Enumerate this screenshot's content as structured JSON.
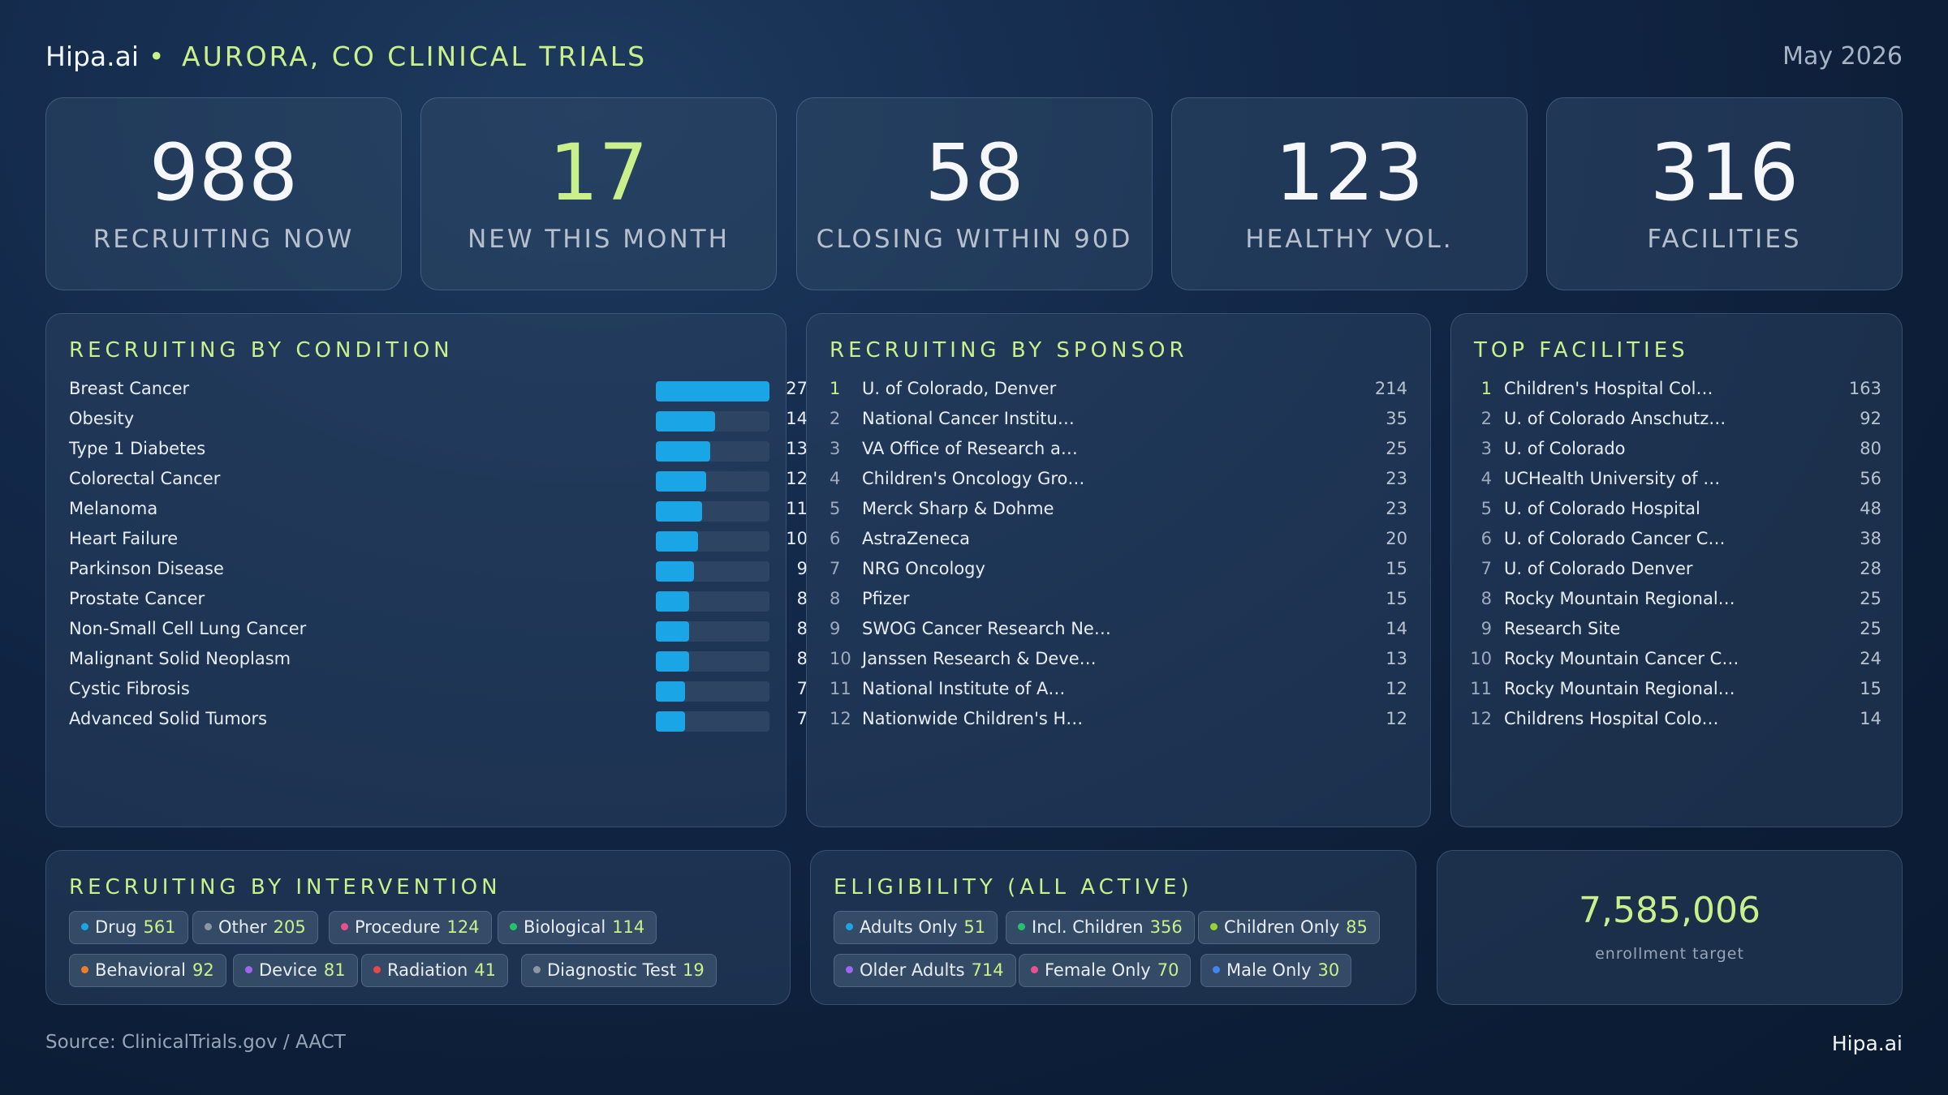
{
  "header": {
    "brand": "Hipa.ai",
    "separator": "•",
    "title": "AURORA, CO CLINICAL TRIALS",
    "date": "May 2026"
  },
  "kpis": [
    {
      "value": "988",
      "label": "RECRUITING NOW"
    },
    {
      "value": "17",
      "label": "NEW THIS MONTH"
    },
    {
      "value": "58",
      "label": "CLOSING WITHIN 90D"
    },
    {
      "value": "123",
      "label": "HEALTHY VOL."
    },
    {
      "value": "316",
      "label": "FACILITIES"
    }
  ],
  "colors": {
    "accent": "#c9f08a",
    "bar": "#1aa6e6",
    "bar_track": "#2d4563"
  },
  "condition": {
    "title": "RECRUITING BY CONDITION",
    "max": 27,
    "items": [
      {
        "label": "Breast Cancer",
        "count": "27",
        "value": 27
      },
      {
        "label": "Obesity",
        "count": "14",
        "value": 14
      },
      {
        "label": "Type 1 Diabetes",
        "count": "13",
        "value": 13
      },
      {
        "label": "Colorectal Cancer",
        "count": "12",
        "value": 12
      },
      {
        "label": "Melanoma",
        "count": "11",
        "value": 11
      },
      {
        "label": "Heart Failure",
        "count": "10",
        "value": 10
      },
      {
        "label": "Parkinson Disease",
        "count": "9",
        "value": 9
      },
      {
        "label": "Prostate Cancer",
        "count": "8",
        "value": 8
      },
      {
        "label": "Non-Small Cell Lung Cancer",
        "count": "8",
        "value": 8
      },
      {
        "label": "Malignant Solid Neoplasm",
        "count": "8",
        "value": 8
      },
      {
        "label": "Cystic Fibrosis",
        "count": "7",
        "value": 7
      },
      {
        "label": "Advanced Solid Tumors",
        "count": "7",
        "value": 7
      }
    ]
  },
  "sponsor": {
    "title": "RECRUITING BY SPONSOR",
    "items": [
      {
        "rank": "1",
        "name": "U. of Colorado, Denver",
        "count": "214"
      },
      {
        "rank": "2",
        "name": "National Cancer Institu…",
        "count": "35"
      },
      {
        "rank": "3",
        "name": "VA Office of Research a…",
        "count": "25"
      },
      {
        "rank": "4",
        "name": "Children's Oncology Gro…",
        "count": "23"
      },
      {
        "rank": "5",
        "name": "Merck Sharp & Dohme",
        "count": "23"
      },
      {
        "rank": "6",
        "name": "AstraZeneca",
        "count": "20"
      },
      {
        "rank": "7",
        "name": "NRG Oncology",
        "count": "15"
      },
      {
        "rank": "8",
        "name": "Pfizer",
        "count": "15"
      },
      {
        "rank": "9",
        "name": "SWOG Cancer Research Ne…",
        "count": "14"
      },
      {
        "rank": "10",
        "name": "Janssen Research & Deve…",
        "count": "13"
      },
      {
        "rank": "11",
        "name": "National Institute of A…",
        "count": "12"
      },
      {
        "rank": "12",
        "name": "Nationwide Children's H…",
        "count": "12"
      }
    ]
  },
  "facilities": {
    "title": "TOP FACILITIES",
    "items": [
      {
        "rank": "1",
        "name": "Children's Hospital Col…",
        "count": "163"
      },
      {
        "rank": "2",
        "name": "U. of Colorado Anschutz…",
        "count": "92"
      },
      {
        "rank": "3",
        "name": "U. of Colorado",
        "count": "80"
      },
      {
        "rank": "4",
        "name": "UCHealth University of …",
        "count": "56"
      },
      {
        "rank": "5",
        "name": "U. of Colorado Hospital",
        "count": "48"
      },
      {
        "rank": "6",
        "name": "U. of Colorado Cancer C…",
        "count": "38"
      },
      {
        "rank": "7",
        "name": "U. of Colorado Denver",
        "count": "28"
      },
      {
        "rank": "8",
        "name": "Rocky Mountain Regional…",
        "count": "25"
      },
      {
        "rank": "9",
        "name": "Research Site",
        "count": "25"
      },
      {
        "rank": "10",
        "name": "Rocky Mountain Cancer C…",
        "count": "24"
      },
      {
        "rank": "11",
        "name": "Rocky Mountain Regional…",
        "count": "15"
      },
      {
        "rank": "12",
        "name": "Childrens Hospital Colo…",
        "count": "14"
      }
    ]
  },
  "intervention": {
    "title": "RECRUITING BY INTERVENTION",
    "chips": [
      {
        "label": "Drug",
        "count": "561",
        "color": "#1aa6e6"
      },
      {
        "label": "Other",
        "count": "205",
        "color": "#8b95a3"
      },
      {
        "label": "Procedure",
        "count": "124",
        "color": "#ec4f8f"
      },
      {
        "label": "Biological",
        "count": "114",
        "color": "#25c26e"
      },
      {
        "label": "Behavioral",
        "count": "92",
        "color": "#f07d2a"
      },
      {
        "label": "Device",
        "count": "81",
        "color": "#a064f0"
      },
      {
        "label": "Radiation",
        "count": "41",
        "color": "#ea4848"
      },
      {
        "label": "Diagnostic Test",
        "count": "19",
        "color": "#8b95a3"
      }
    ]
  },
  "eligibility": {
    "title": "ELIGIBILITY (ALL ACTIVE)",
    "chips": [
      {
        "label": "Adults Only",
        "count": "51",
        "color": "#1aa6e6"
      },
      {
        "label": "Incl. Children",
        "count": "356",
        "color": "#25c26e"
      },
      {
        "label": "Children Only",
        "count": "85",
        "color": "#9bd22f"
      },
      {
        "label": "Older Adults",
        "count": "714",
        "color": "#a064f0"
      },
      {
        "label": "Female Only",
        "count": "70",
        "color": "#ec4f8f"
      },
      {
        "label": "Male Only",
        "count": "30",
        "color": "#3f86ee"
      }
    ]
  },
  "enrollment": {
    "value": "7,585,006",
    "label": "enrollment target"
  },
  "footer": {
    "source": "Source: ClinicalTrials.gov / AACT",
    "brand": "Hipa.ai"
  }
}
